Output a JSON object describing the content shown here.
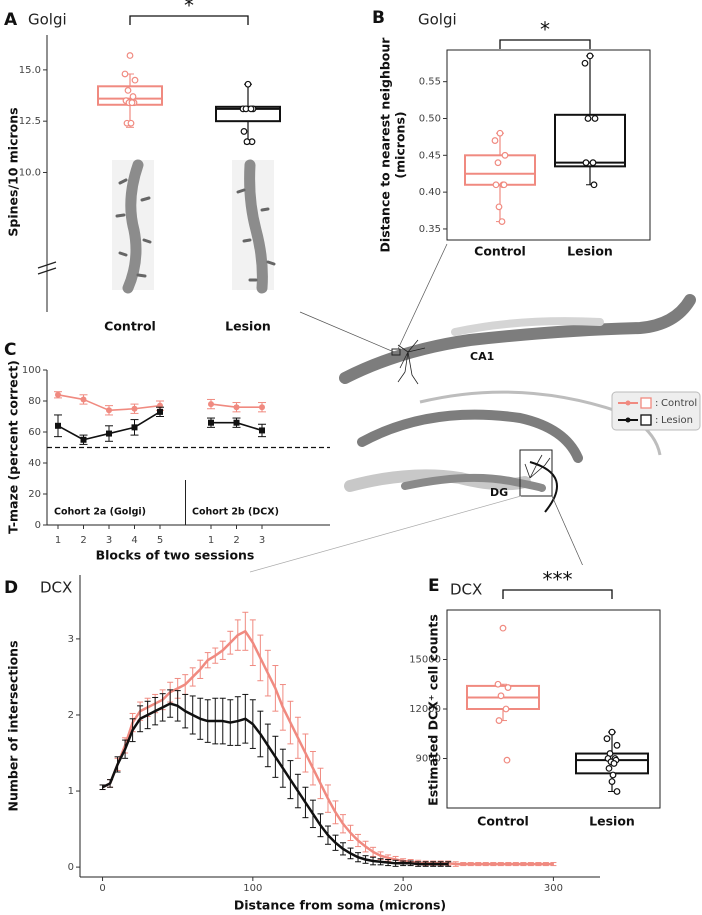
{
  "chart_data": [
    {
      "type": "box",
      "label": "A",
      "title": "Golgi",
      "ylabel": "Spines/10 microns",
      "categories": [
        "Control",
        "Lesion"
      ],
      "colors": [
        "#f08a80",
        "#111111"
      ],
      "boxes": [
        {
          "min": 12.2,
          "q1": 13.3,
          "median": 13.6,
          "q3": 14.2,
          "max": 14.8,
          "points": [
            15.7,
            14.8,
            14.5,
            14.0,
            13.7,
            13.5,
            13.4,
            13.4,
            13.4,
            12.4,
            12.4
          ]
        },
        {
          "min": 11.4,
          "q1": 12.5,
          "median": 13.1,
          "q3": 13.2,
          "max": 14.3,
          "points": [
            14.3,
            13.1,
            13.1,
            13.1,
            13.1,
            12.0,
            11.5,
            11.5
          ]
        }
      ],
      "ylim": [
        3.2,
        16.7
      ],
      "yticks": [
        {
          "value": 10,
          "label": "10.0"
        },
        {
          "value": 12.5,
          "label": "12.5"
        },
        {
          "value": 15,
          "label": "15.0"
        }
      ],
      "significance": "*",
      "frame": false
    },
    {
      "type": "box",
      "label": "B",
      "title": "Golgi",
      "ylabel": [
        "Distance to nearest neighbour",
        "(microns)"
      ],
      "categories": [
        "Control",
        "Lesion"
      ],
      "colors": [
        "#f08a80",
        "#111111"
      ],
      "boxes": [
        {
          "min": 0.36,
          "q1": 0.41,
          "median": 0.425,
          "q3": 0.45,
          "max": 0.48,
          "points": [
            0.48,
            0.47,
            0.45,
            0.44,
            0.41,
            0.41,
            0.41,
            0.38,
            0.36
          ]
        },
        {
          "min": 0.41,
          "q1": 0.435,
          "median": 0.44,
          "q3": 0.505,
          "max": 0.585,
          "points": [
            0.585,
            0.575,
            0.5,
            0.5,
            0.44,
            0.44,
            0.41
          ]
        }
      ],
      "ylim": [
        0.335,
        0.593
      ],
      "yticks": [
        0.35,
        {
          "value": 0.4,
          "label": "0.40"
        },
        0.45,
        {
          "value": 0.5,
          "label": "0.50"
        },
        0.55
      ],
      "significance": "*",
      "frame": true
    },
    {
      "type": "line",
      "label": "C",
      "ylabel": "T-maze (percent correct)",
      "xlabel": "Blocks of two sessions",
      "categories": [
        "1",
        "2",
        "3",
        "4",
        "5",
        null,
        "1",
        "2",
        "3"
      ],
      "series": [
        {
          "name": "Control",
          "color": "#f08a80",
          "marker": "circle",
          "values": [
            84,
            81,
            74,
            75,
            77,
            null,
            78,
            76,
            76
          ],
          "errors": [
            2,
            3,
            3,
            3,
            3,
            null,
            3,
            3,
            3
          ]
        },
        {
          "name": "Lesion",
          "color": "#111111",
          "marker": "square",
          "values": [
            64,
            55,
            59,
            63,
            73,
            null,
            66,
            66,
            61
          ],
          "errors": [
            7,
            3,
            5,
            5,
            3,
            null,
            3,
            3,
            4
          ]
        }
      ],
      "ylim": [
        0,
        100
      ],
      "yticks": [
        0,
        20,
        40,
        60,
        80,
        100
      ],
      "hline": 50,
      "annotations": [
        "Cohort 2a (Golgi)",
        "Cohort 2b (DCX)"
      ],
      "legend_separator": ":"
    },
    {
      "type": "line",
      "label": "D",
      "title": "DCX",
      "ylabel": "Number of intersections",
      "xlabel": "Distance from soma (microns)",
      "x": [
        0,
        5,
        10,
        15,
        20,
        25,
        30,
        35,
        40,
        45,
        50,
        55,
        60,
        65,
        70,
        75,
        80,
        85,
        90,
        95,
        100,
        105,
        110,
        115,
        120,
        125,
        130,
        135,
        140,
        145,
        150,
        155,
        160,
        165,
        170,
        175,
        180,
        185,
        190,
        195,
        200,
        205,
        210,
        215,
        220,
        225,
        230,
        235,
        240,
        245,
        250,
        255,
        260,
        265,
        270,
        275,
        280,
        285,
        290,
        295,
        300
      ],
      "series": [
        {
          "color": "#f08a80",
          "values": [
            1.05,
            1.1,
            1.35,
            1.6,
            1.9,
            2.05,
            2.1,
            2.15,
            2.2,
            2.3,
            2.35,
            2.4,
            2.5,
            2.6,
            2.72,
            2.78,
            2.85,
            2.95,
            3.05,
            3.1,
            2.95,
            2.75,
            2.55,
            2.35,
            2.1,
            1.9,
            1.7,
            1.5,
            1.3,
            1.1,
            0.9,
            0.72,
            0.57,
            0.45,
            0.35,
            0.27,
            0.2,
            0.15,
            0.12,
            0.1,
            0.08,
            0.07,
            0.06,
            0.05,
            0.05,
            0.05,
            0.05,
            0.04,
            0.04,
            0.04,
            0.04,
            0.04,
            0.04,
            0.04,
            0.04,
            0.04,
            0.04,
            0.04,
            0.04,
            0.04,
            0.04
          ],
          "errors": [
            0.03,
            0.05,
            0.08,
            0.1,
            0.12,
            0.12,
            0.12,
            0.12,
            0.13,
            0.13,
            0.13,
            0.13,
            0.12,
            0.12,
            0.1,
            0.1,
            0.12,
            0.15,
            0.2,
            0.25,
            0.3,
            0.3,
            0.3,
            0.3,
            0.3,
            0.28,
            0.27,
            0.25,
            0.22,
            0.2,
            0.18,
            0.15,
            0.12,
            0.1,
            0.08,
            0.07,
            0.06,
            0.05,
            0.04,
            0.04,
            0.03,
            0.03,
            0.03,
            0.03,
            0.03,
            0.03,
            0.03,
            0.03,
            0.02,
            0.02,
            0.02,
            0.02,
            0.02,
            0.02,
            0.02,
            0.02,
            0.02,
            0.02,
            0.02,
            0.02,
            0.02
          ]
        },
        {
          "color": "#111111",
          "values": [
            1.05,
            1.1,
            1.35,
            1.55,
            1.8,
            1.95,
            2.0,
            2.05,
            2.1,
            2.15,
            2.12,
            2.05,
            2.0,
            1.95,
            1.92,
            1.92,
            1.92,
            1.9,
            1.92,
            1.95,
            1.88,
            1.75,
            1.6,
            1.45,
            1.3,
            1.15,
            1.0,
            0.85,
            0.7,
            0.55,
            0.42,
            0.32,
            0.24,
            0.18,
            0.13,
            0.1,
            0.08,
            0.07,
            0.06,
            0.05,
            0.05,
            0.05,
            0.04,
            0.04,
            0.04,
            0.04,
            0.04,
            null,
            null,
            null,
            null,
            null,
            null,
            null,
            null,
            null,
            null,
            null,
            null,
            null,
            null
          ],
          "errors": [
            0.03,
            0.05,
            0.1,
            0.12,
            0.15,
            0.17,
            0.18,
            0.18,
            0.18,
            0.18,
            0.2,
            0.22,
            0.25,
            0.27,
            0.28,
            0.3,
            0.3,
            0.3,
            0.32,
            0.32,
            0.32,
            0.3,
            0.28,
            0.27,
            0.25,
            0.25,
            0.22,
            0.2,
            0.18,
            0.15,
            0.12,
            0.1,
            0.08,
            0.07,
            0.06,
            0.05,
            0.05,
            0.04,
            0.04,
            0.04,
            0.03,
            0.03,
            0.03,
            0.03,
            0.03,
            0.03,
            0.03,
            null,
            null,
            null,
            null,
            null,
            null,
            null,
            null,
            null,
            null,
            null,
            null,
            null,
            null
          ]
        }
      ],
      "xlim": [
        -15,
        331
      ],
      "ylim": [
        -0.13,
        3.84
      ],
      "xticks": [
        0,
        100,
        200,
        300
      ],
      "yticks": [
        0,
        1,
        2,
        3
      ]
    },
    {
      "type": "box",
      "label": "E",
      "title": "DCX",
      "ylabel": "Estimated DCX⁺ cell counts",
      "categories": [
        "Control",
        "Lesion"
      ],
      "colors": [
        "#f08a80",
        "#111111"
      ],
      "boxes": [
        {
          "min": 11300,
          "q1": 12000,
          "median": 12700,
          "q3": 13400,
          "max": 13500,
          "points": [
            16900,
            13500,
            13300,
            12800,
            12000,
            11300,
            8900
          ]
        },
        {
          "min": 7000,
          "q1": 8100,
          "median": 8900,
          "q3": 9300,
          "max": 10600,
          "points": [
            10600,
            10200,
            9800,
            9300,
            9000,
            9000,
            8900,
            8800,
            8700,
            8400,
            8000,
            7600,
            7000
          ]
        }
      ],
      "ylim": [
        6000,
        18000
      ],
      "yticks": [
        9000,
        12000,
        15000
      ],
      "significance": "***",
      "frame": true
    }
  ],
  "diagram": {
    "labels": [
      "CA1",
      "DG"
    ]
  }
}
